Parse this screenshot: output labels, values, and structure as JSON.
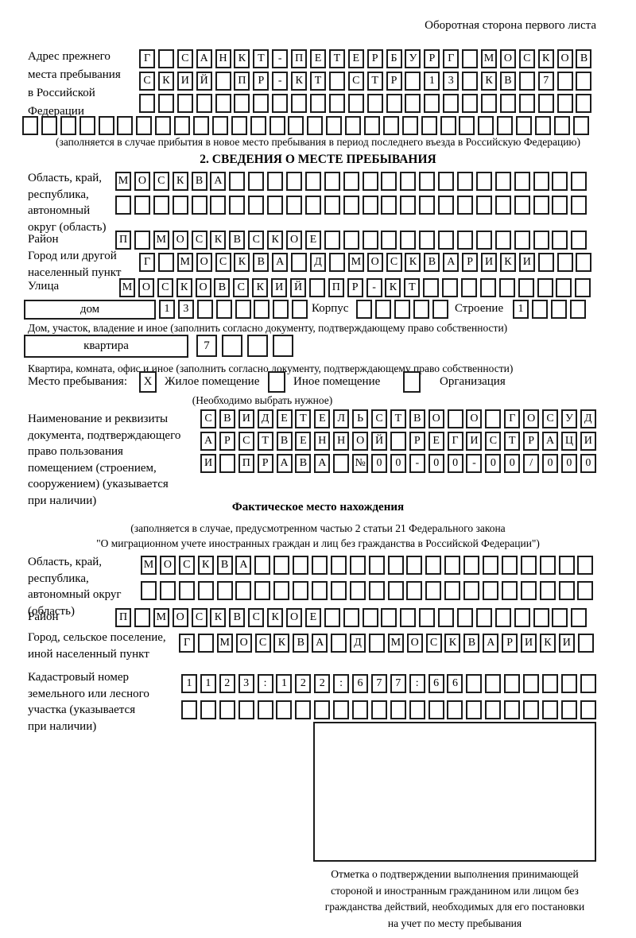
{
  "page_title": "Оборотная сторона первого листа",
  "prev_address": {
    "label_lines": [
      "Адрес прежнего",
      "места пребывания",
      "в Российской",
      "Федерации"
    ],
    "rows": [
      {
        "text": "Г САНКТ-ПЕТЕРБУРГ МОСКОВ",
        "len": 24
      },
      {
        "text": "СКИЙ ПР-КТ СТР 13 КВ 7",
        "len": 24
      },
      {
        "text": "",
        "len": 24
      },
      {
        "text": "",
        "len": 30
      }
    ],
    "note": "(заполняется в случае прибытия в новое место пребывания в период последнего въезда в Российскую Федерацию)"
  },
  "section2": {
    "title": "2. СВЕДЕНИЯ О МЕСТЕ ПРЕБЫВАНИЯ",
    "region": {
      "label_lines": [
        "Область, край,",
        "республика,",
        "автономный",
        "округ (область)"
      ],
      "rows": [
        {
          "text": "МОСКВА",
          "len": 25
        },
        {
          "text": "",
          "len": 25
        }
      ]
    },
    "district": {
      "label": "Район",
      "row": {
        "text": "П МОСКВСКОЕ",
        "len": 25
      }
    },
    "city": {
      "label_lines": [
        "Город или другой",
        "населенный пункт"
      ],
      "row": {
        "text": "Г МОСКВА Д МОСКВАРИКИ",
        "len": 24
      }
    },
    "street": {
      "label": "Улица",
      "row": {
        "text": "МОСКОВСКИЙ ПР-КТ",
        "len": 25
      }
    },
    "house": {
      "box_label": "дом",
      "row": {
        "text": "13",
        "len": 8
      },
      "korpus_label": "Корпус",
      "korpus_row": {
        "text": "",
        "len": 5
      },
      "stroenie_label": "Строение",
      "stroenie_row": {
        "text": "1",
        "len": 4
      },
      "note": "Дом, участок, владение и иное (заполнить согласно документу, подтверждающему право собственности)"
    },
    "apartment": {
      "box_label": "квартира",
      "row": {
        "text": "7",
        "len": 4
      },
      "note": "Квартира, комната, офис и иное (заполнить согласно документу, подтверждающему право собственности)"
    },
    "stay_type": {
      "label": "Место пребывания:",
      "options": [
        {
          "label": "Жилое помещение",
          "checked": "X"
        },
        {
          "label": "Иное помещение",
          "checked": ""
        },
        {
          "label": "Организация",
          "checked": ""
        }
      ],
      "note": "(Необходимо выбрать нужное)"
    },
    "document": {
      "label_lines": [
        "Наименование и реквизиты",
        "документа, подтверждающего",
        "право пользования",
        "помещением (строением,",
        "сооружением) (указывается",
        "при наличии)"
      ],
      "rows": [
        {
          "text": "СВИДЕТЕЛЬСТВО О ГОСУД",
          "len": 21
        },
        {
          "text": "АРСТВЕННОЙ РЕГИСТРАЦИ",
          "len": 21
        },
        {
          "text": "И ПРАВА №00-00-00/000",
          "len": 21
        }
      ]
    }
  },
  "fact_location": {
    "title": "Фактическое место нахождения",
    "note_lines": [
      "(заполняется в случае, предусмотренном частью 2 статьи 21 Федерального закона",
      "\"О миграционном учете иностранных граждан и лиц без гражданства в Российской Федерации\")"
    ],
    "region": {
      "label_lines": [
        "Область, край,",
        "республика,",
        "автономный округ",
        "(область)"
      ],
      "rows": [
        {
          "text": "МОСКВА",
          "len": 24
        },
        {
          "text": "",
          "len": 24
        }
      ]
    },
    "district": {
      "label": "Район",
      "row": {
        "text": "П МОСКВСКОЕ",
        "len": 25
      }
    },
    "city": {
      "label_lines": [
        "Город, сельское поселение,",
        "иной населенный пункт"
      ],
      "row": {
        "text": "Г МОСКВА Д МОСКВАРИКИ",
        "len": 22
      }
    },
    "cadastral": {
      "label_lines": [
        "Кадастровый номер",
        "земельного или лесного",
        "участка (указывается",
        "при наличии)"
      ],
      "rows": [
        {
          "text": "1123:122:677:66",
          "len": 22
        },
        {
          "text": "",
          "len": 22
        }
      ]
    },
    "mark_caption_lines": [
      "Отметка о подтверждении выполнения принимающей",
      "стороной и иностранным гражданином или лицом без",
      "гражданства действий, необходимых для его постановки",
      "на учет по месту пребывания"
    ]
  }
}
